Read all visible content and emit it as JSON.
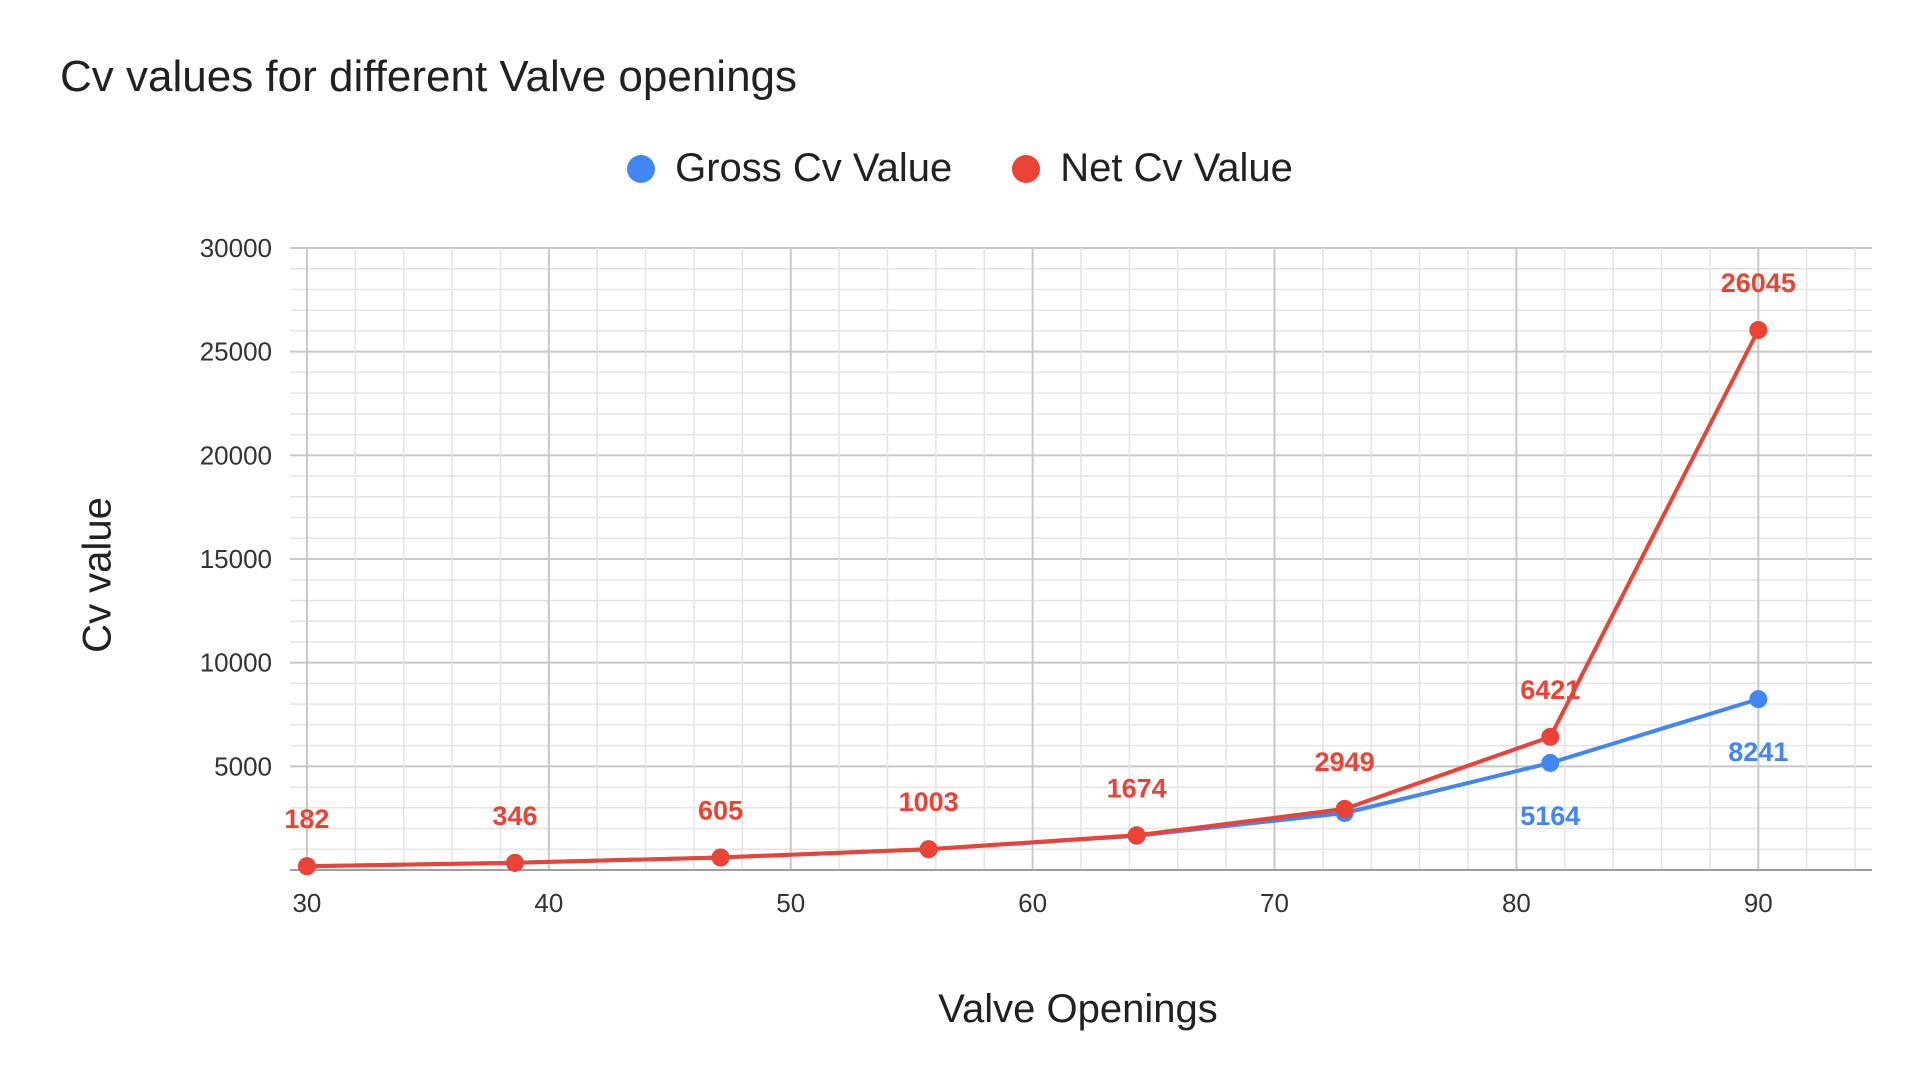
{
  "chart_data": {
    "type": "line",
    "title": "Cv values for different Valve openings",
    "xlabel": "Valve Openings",
    "ylabel": "Cv value",
    "x": [
      30,
      38.6,
      47.1,
      55.7,
      64.3,
      72.9,
      81.4,
      90
    ],
    "series": [
      {
        "name": "Gross Cv Value",
        "color": "#4285f4",
        "values": [
          182,
          346,
          605,
          1003,
          1650,
          2750,
          5164,
          8241
        ],
        "labels": [
          "",
          "",
          "",
          "",
          "",
          "",
          "5164",
          "8241"
        ]
      },
      {
        "name": "Net Cv Value",
        "color": "#ea4335",
        "values": [
          182,
          346,
          605,
          1003,
          1674,
          2949,
          6421,
          26045
        ],
        "labels": [
          "182",
          "346",
          "605",
          "1003",
          "1674",
          "2949",
          "6421",
          "26045"
        ]
      }
    ],
    "xlim": [
      29.3,
      94.7
    ],
    "ylim": [
      0,
      30000
    ],
    "xticks": [
      "30",
      "40",
      "50",
      "60",
      "70",
      "80",
      "90"
    ],
    "yticks": [
      "5000",
      "10000",
      "15000",
      "20000",
      "25000",
      "30000"
    ],
    "grid": true,
    "legend": "top-center"
  }
}
